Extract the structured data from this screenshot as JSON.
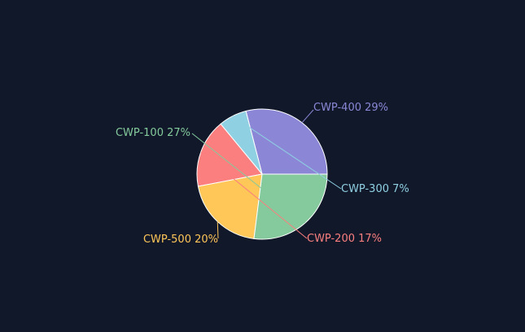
{
  "chart_data": {
    "type": "pie",
    "background": "#11182a",
    "slice_border_color": "#ffffff",
    "slices": [
      {
        "label": "CWP-400 29%",
        "value": 29,
        "color": "#8b87d6"
      },
      {
        "label": "CWP-300 7%",
        "value": 7,
        "color": "#8fd0e2"
      },
      {
        "label": "CWP-200 17%",
        "value": 17,
        "color": "#fb7f7f"
      },
      {
        "label": "CWP-500 20%",
        "value": 20,
        "color": "#ffc658"
      },
      {
        "label": "CWP-100 27%",
        "value": 27,
        "color": "#84ca9c"
      }
    ]
  }
}
